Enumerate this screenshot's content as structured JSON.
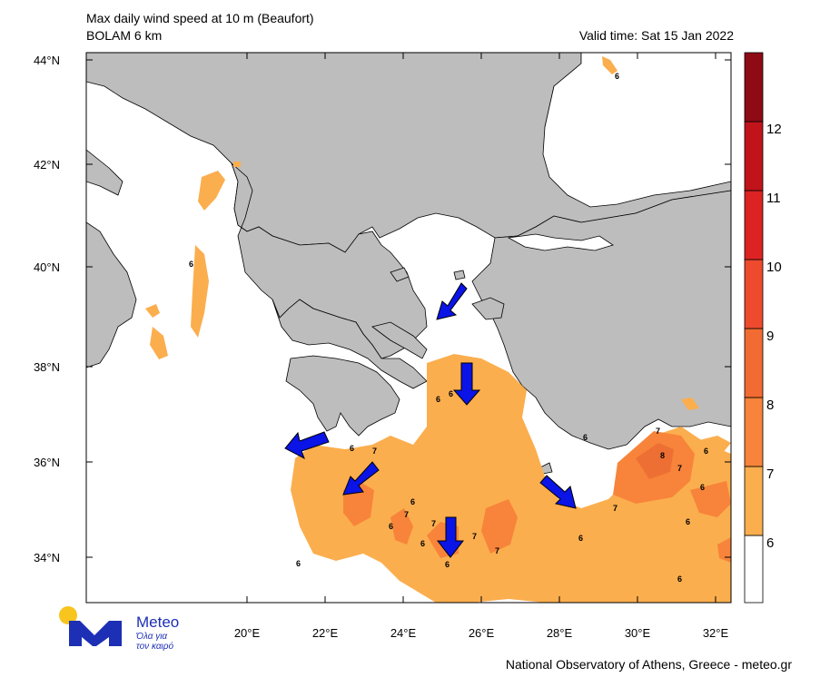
{
  "header": {
    "title": "Max daily wind speed at 10 m (Beaufort)",
    "model": "BOLAM 6 km",
    "valid_time": "Valid time: Sat 15 Jan 2022"
  },
  "map": {
    "lat_labels": [
      "44°N",
      "42°N",
      "40°N",
      "38°N",
      "36°N",
      "34°N"
    ],
    "lon_labels": [
      "20°E",
      "22°E",
      "24°E",
      "26°E",
      "28°E",
      "30°E",
      "32°E"
    ],
    "contour_labels": [
      "6",
      "6",
      "6",
      "6",
      "6",
      "7",
      "6",
      "7",
      "6",
      "6",
      "7",
      "6",
      "6",
      "7",
      "7",
      "6",
      "7",
      "7",
      "8",
      "7",
      "6",
      "6",
      "6",
      "6",
      "6"
    ],
    "colors": {
      "land": "#bdbdbd",
      "sea": "#ffffff",
      "bf6": "#fbae4e",
      "bf7": "#f7843a",
      "arrow": "#0a14e6"
    }
  },
  "colorbar": {
    "labels": [
      "12",
      "11",
      "10",
      "9",
      "8",
      "7",
      "6"
    ],
    "colors": [
      "#ffffff",
      "#fbae4e",
      "#f7843a",
      "#f26b32",
      "#ee4a2e",
      "#dc2222",
      "#c0141a",
      "#8e0a14"
    ]
  },
  "logo": {
    "name": "Meteo",
    "tagline_1": "Όλα για",
    "tagline_2": "τον καιρό"
  },
  "footer": {
    "credit": "National Observatory of Athens, Greece - meteo.gr"
  }
}
